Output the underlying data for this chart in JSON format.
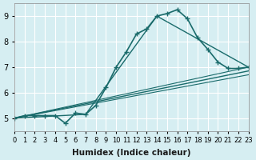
{
  "xlabel": "Humidex (Indice chaleur)",
  "ylabel": "",
  "background_color": "#d6eef2",
  "grid_color": "#ffffff",
  "line_color": "#1a6b6b",
  "xlim": [
    0,
    23
  ],
  "ylim": [
    4.5,
    9.5
  ],
  "yticks": [
    5,
    6,
    7,
    8,
    9
  ],
  "xticks": [
    0,
    1,
    2,
    3,
    4,
    5,
    6,
    7,
    8,
    9,
    10,
    11,
    12,
    13,
    14,
    15,
    16,
    17,
    18,
    19,
    20,
    21,
    22,
    23
  ],
  "series": [
    {
      "x": [
        0,
        1,
        2,
        3,
        4,
        5,
        6,
        7,
        8,
        9,
        10,
        11,
        12,
        13,
        14,
        15,
        16,
        17,
        18,
        19,
        20,
        21,
        22,
        23
      ],
      "y": [
        5.0,
        5.1,
        5.1,
        5.1,
        5.1,
        4.8,
        5.2,
        5.15,
        5.5,
        6.2,
        7.0,
        7.6,
        8.3,
        8.5,
        9.0,
        9.1,
        9.25,
        8.9,
        8.15,
        7.7,
        7.2,
        6.95,
        6.95,
        7.0
      ],
      "marker": "+",
      "linewidth": 1.2
    },
    {
      "x": [
        0,
        7,
        14,
        23
      ],
      "y": [
        5.0,
        5.15,
        9.0,
        7.0
      ],
      "marker": null,
      "linewidth": 1.0
    },
    {
      "x": [
        0,
        23
      ],
      "y": [
        5.0,
        6.85
      ],
      "marker": null,
      "linewidth": 1.0
    },
    {
      "x": [
        0,
        23
      ],
      "y": [
        5.0,
        7.0
      ],
      "marker": null,
      "linewidth": 0.8
    },
    {
      "x": [
        0,
        23
      ],
      "y": [
        5.0,
        6.7
      ],
      "marker": null,
      "linewidth": 0.8
    }
  ]
}
